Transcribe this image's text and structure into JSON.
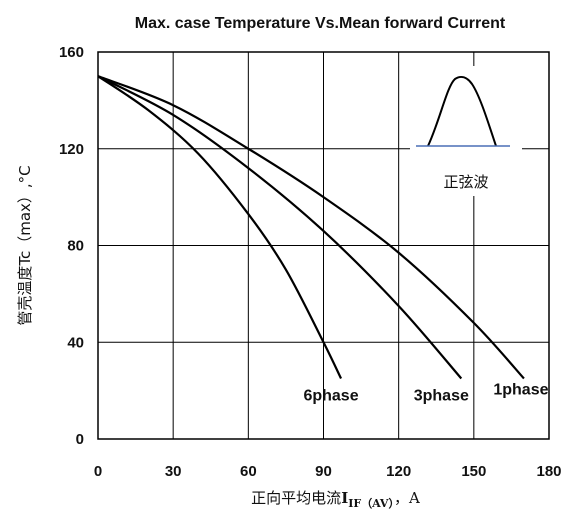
{
  "chart_data": {
    "type": "line",
    "title": "Max. case Temperature Vs.Mean forward Current",
    "ylabel": "管壳温度Tc（max）,°C",
    "xlabel": {
      "prefix": "正向平均电流",
      "symbol": "I",
      "subscript_bold": "IF",
      "subscript_paren": "（AV）",
      "suffix": "，A"
    },
    "xlim": [
      0,
      180
    ],
    "ylim": [
      0,
      160
    ],
    "xticks": [
      "0",
      "30",
      "60",
      "90",
      "120",
      "150",
      "180"
    ],
    "yticks": [
      "0",
      "40",
      "80",
      "120",
      "160"
    ],
    "grid": true,
    "series": [
      {
        "name": "6phase",
        "x": [
          0,
          20,
          40,
          60,
          75,
          90,
          97
        ],
        "y": [
          150,
          136,
          118,
          93,
          70,
          40,
          25
        ]
      },
      {
        "name": "3phase",
        "x": [
          0,
          30,
          60,
          90,
          120,
          145
        ],
        "y": [
          150,
          134,
          112,
          86,
          55,
          25
        ]
      },
      {
        "name": "1phase",
        "x": [
          0,
          30,
          60,
          90,
          120,
          150,
          170
        ],
        "y": [
          150,
          138,
          120,
          100,
          77,
          48,
          25
        ]
      }
    ],
    "inset": {
      "label": "正弦波",
      "shape": "half-sine waveform"
    }
  }
}
